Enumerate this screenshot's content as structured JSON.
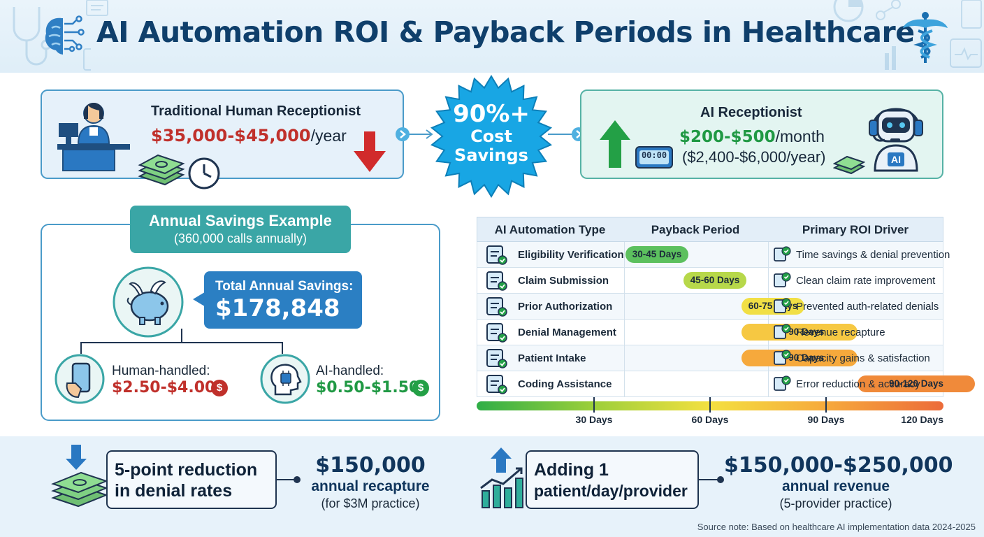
{
  "header": {
    "title": "AI Automation ROI & Payback Periods in Healthcare"
  },
  "human": {
    "title": "Traditional Human Receptionist",
    "cost": "$35,000-$45,000",
    "unit": "/year"
  },
  "savings_badge": {
    "line1": "90%+",
    "line2": "Cost",
    "line3": "Savings"
  },
  "ai": {
    "title": "AI Receptionist",
    "cost": "$200-$500",
    "unit": "/month",
    "annual": "($2,400-$6,000/year)",
    "chip_label": "AI",
    "clock_display": "00:00"
  },
  "annual_example": {
    "title": "Annual Savings Example",
    "subtitle": "(360,000 calls annually)",
    "total_label": "Total Annual Savings:",
    "total_value": "$178,848",
    "human_label": "Human-handled:",
    "human_value": "$2.50-$4.00",
    "ai_label": "AI-handled:",
    "ai_value": "$0.50-$1.50",
    "currency_symbol": "$"
  },
  "table": {
    "headers": [
      "AI Automation Type",
      "Payback Period",
      "Primary ROI Driver"
    ],
    "rows": [
      {
        "type": "Eligibility Verification",
        "period": "30-45 Days",
        "start": 30,
        "end": 45,
        "color": "#5cc05e",
        "driver": "Time savings & denial prevention"
      },
      {
        "type": "Claim Submission",
        "period": "45-60 Days",
        "start": 45,
        "end": 60,
        "color": "#b7d84a",
        "driver": "Clean claim rate improvement"
      },
      {
        "type": "Prior Authorization",
        "period": "60-75 Days",
        "start": 60,
        "end": 75,
        "color": "#f1df45",
        "driver": "Prevented auth-related denials"
      },
      {
        "type": "Denial Management",
        "period": "60-90 Days",
        "start": 60,
        "end": 90,
        "color": "#f6c842",
        "driver": "Revenue recapture"
      },
      {
        "type": "Patient Intake",
        "period": "60-90 Days",
        "start": 60,
        "end": 90,
        "color": "#f6a93c",
        "driver": "Capacity gains & satisfaction"
      },
      {
        "type": "Coding Assistance",
        "period": "90-120 Days",
        "start": 90,
        "end": 120,
        "color": "#f08a3a",
        "driver": "Error reduction & accuracy"
      }
    ],
    "axis_ticks": [
      "30 Days",
      "60 Days",
      "90 Days",
      "120 Days"
    ]
  },
  "bottom": {
    "left": {
      "text_line1": "5-point reduction",
      "text_line2": "in denial rates",
      "value": "$150,000",
      "value_label": "annual recapture",
      "note": "(for $3M practice)"
    },
    "right": {
      "text_line1": "Adding 1",
      "text_line2": "patient/day/provider",
      "value": "$150,000-$250,000",
      "value_label": "annual revenue",
      "note": "(5-provider practice)"
    }
  },
  "source_note": "Source note: Based on healthcare AI implementation data 2024-2025",
  "colors": {
    "navy": "#0f3f6b",
    "red": "#c0302b",
    "green": "#209944",
    "blue": "#2b7fc3",
    "teal": "#3aa6a6",
    "badge": "#18a6e4"
  },
  "icons": [
    "brain-circuit-icon",
    "caduceus-icon",
    "receptionist-icon",
    "cash-stack-icon",
    "clock-icon",
    "down-arrow-icon",
    "up-arrow-icon",
    "digital-clock-icon",
    "robot-icon",
    "piggy-bank-icon",
    "smartphone-icon",
    "ai-head-icon",
    "dollar-coin-icon",
    "chart-growth-icon"
  ]
}
